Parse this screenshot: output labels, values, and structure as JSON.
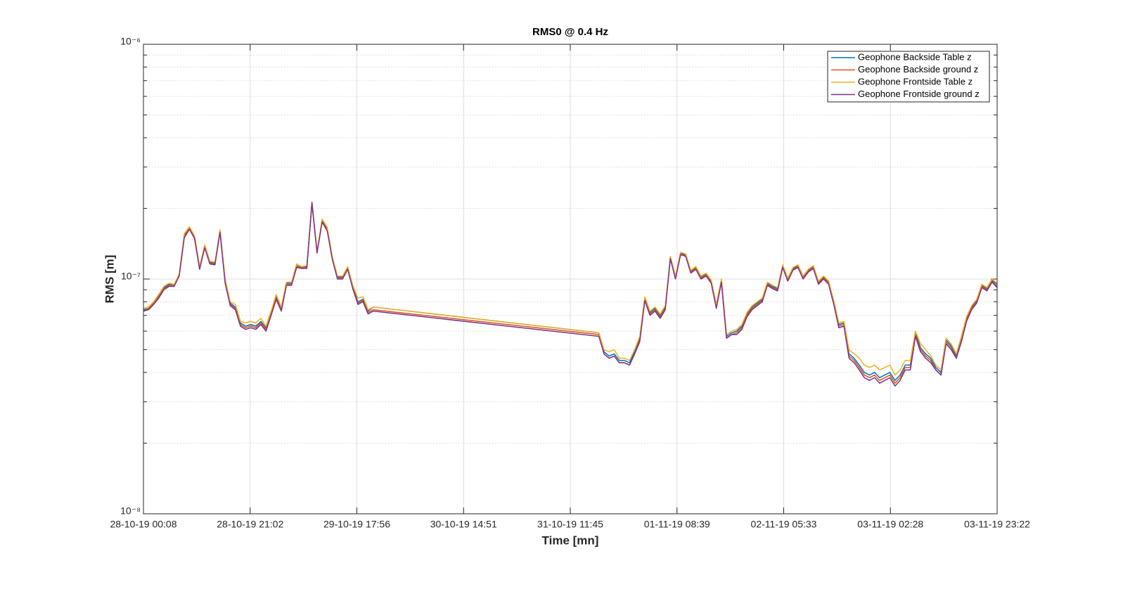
{
  "chart_data": {
    "type": "line",
    "title": "RMS0 @ 0.4 Hz",
    "xlabel": "Time [mn]",
    "ylabel": "RMS [m]",
    "yscale": "log",
    "grid": true,
    "legend": "northeast",
    "xlim": [
      0,
      167.2
    ],
    "xticks": [
      {
        "value": 0,
        "label": "28-10-19 00:08"
      },
      {
        "value": 20.9,
        "label": "28-10-19 21:02"
      },
      {
        "value": 41.8,
        "label": "29-10-19 17:56"
      },
      {
        "value": 62.7,
        "label": "30-10-19 14:51"
      },
      {
        "value": 83.6,
        "label": "31-10-19 11:45"
      },
      {
        "value": 104.5,
        "label": "01-11-19 08:39"
      },
      {
        "value": 125.4,
        "label": "02-11-19 05:33"
      },
      {
        "value": 146.3,
        "label": "03-11-19 02:28"
      },
      {
        "value": 167.2,
        "label": "03-11-19 23:22"
      }
    ],
    "ylim": [
      1e-08,
      1e-06
    ],
    "yticks": [
      {
        "value": 1e-08,
        "label": "10⁻⁸"
      },
      {
        "value": 1e-07,
        "label": "10⁻⁷"
      },
      {
        "value": 1e-06,
        "label": "10⁻⁶"
      }
    ],
    "yminorticks": [
      2e-08,
      3e-08,
      4e-08,
      5e-08,
      6e-08,
      7e-08,
      8e-08,
      9e-08,
      2e-07,
      3e-07,
      4e-07,
      5e-07,
      6e-07,
      7e-07,
      8e-07,
      9e-07
    ],
    "x": [
      0,
      1,
      2,
      3,
      4,
      5,
      6,
      7,
      8,
      9,
      10,
      11,
      12,
      13,
      14,
      15,
      16,
      17,
      18,
      19,
      20,
      21,
      22,
      23,
      24,
      25,
      26,
      27,
      28,
      29,
      30,
      31,
      32,
      33,
      34,
      35,
      36,
      37,
      38,
      39,
      40,
      41,
      42,
      43,
      44,
      45,
      89.2,
      90.2,
      91.2,
      92.2,
      93.2,
      94.2,
      95.2,
      96.2,
      97.2,
      98.2,
      99.2,
      100.2,
      101.2,
      102.2,
      103.2,
      104.2,
      105.2,
      106.2,
      107.2,
      108.2,
      109.2,
      110.2,
      111.2,
      112.2,
      113.2,
      114.2,
      115.2,
      116.2,
      117.2,
      118.2,
      119.2,
      120.2,
      121.2,
      122.2,
      123.2,
      124.2,
      125.2,
      126.2,
      127.2,
      128.2,
      129.2,
      130.2,
      131.2,
      132.2,
      133.2,
      134.2,
      135.2,
      136.2,
      137.2,
      138.2,
      139.2,
      140.2,
      141.2,
      142.2,
      143.2,
      144.2,
      145.2,
      146.2,
      147.2,
      148.2,
      149.2,
      150.2,
      151.2,
      152.2,
      153.2,
      154.2,
      155.2,
      156.2,
      157.2,
      158.2,
      159.2,
      160.2,
      161.2,
      162.2,
      163.2,
      164.2,
      165.2,
      166.2,
      167.2
    ],
    "series": [
      {
        "name": "Geophone Backside Table z",
        "color": "#0072BD",
        "values": [
          7.4e-08,
          7.5e-08,
          7.9e-08,
          8.5e-08,
          9.2e-08,
          9.5e-08,
          9.4e-08,
          1.04e-07,
          1.54e-07,
          1.66e-07,
          1.52e-07,
          1.12e-07,
          1.39e-07,
          1.18e-07,
          1.17e-07,
          1.61e-07,
          9.8e-08,
          7.9e-08,
          7.6e-08,
          6.5e-08,
          6.3e-08,
          6.4e-08,
          6.3e-08,
          6.6e-08,
          6.2e-08,
          7.2e-08,
          8.4e-08,
          7.5e-08,
          9.6e-08,
          9.6e-08,
          1.14e-07,
          1.12e-07,
          1.13e-07,
          2.13e-07,
          1.31e-07,
          1.78e-07,
          1.64e-07,
          1.23e-07,
          1.02e-07,
          1.02e-07,
          1.12e-07,
          9.3e-08,
          8e-08,
          8.2e-08,
          7.3e-08,
          7.6e-08,
          5.9e-08,
          4.9e-08,
          4.7e-08,
          4.8e-08,
          4.5e-08,
          4.5e-08,
          4.4e-08,
          4.9e-08,
          5.6e-08,
          8.3e-08,
          7.2e-08,
          7.5e-08,
          7e-08,
          7.6e-08,
          1.24e-07,
          1.02e-07,
          1.29e-07,
          1.27e-07,
          1.08e-07,
          1.12e-07,
          1.02e-07,
          1.05e-07,
          9.8e-08,
          7.7e-08,
          9.9e-08,
          5.7e-08,
          5.9e-08,
          6e-08,
          6.3e-08,
          7.1e-08,
          7.6e-08,
          7.9e-08,
          8.2e-08,
          9.6e-08,
          9.3e-08,
          9.1e-08,
          1.14e-07,
          1e-07,
          1.11e-07,
          1.14e-07,
          1.02e-07,
          1.09e-07,
          1.13e-07,
          9.7e-08,
          1.02e-07,
          9.7e-08,
          8e-08,
          6.4e-08,
          6.5e-08,
          4.8e-08,
          4.6e-08,
          4.3e-08,
          4e-08,
          3.9e-08,
          4e-08,
          3.8e-08,
          3.9e-08,
          4e-08,
          3.7e-08,
          3.9e-08,
          4.3e-08,
          4.3e-08,
          5.9e-08,
          5.1e-08,
          4.8e-08,
          4.6e-08,
          4.2e-08,
          4e-08,
          5.5e-08,
          5.2e-08,
          4.7e-08,
          5.6e-08,
          6.8e-08,
          7.6e-08,
          8.1e-08,
          9.4e-08,
          9.1e-08,
          9.9e-08,
          9.5e-08
        ]
      },
      {
        "name": "Geophone Backside ground z",
        "color": "#D95319",
        "values": [
          7.3e-08,
          7.5e-08,
          7.9e-08,
          8.4e-08,
          9.1e-08,
          9.4e-08,
          9.4e-08,
          1.04e-07,
          1.52e-07,
          1.65e-07,
          1.5e-07,
          1.11e-07,
          1.38e-07,
          1.17e-07,
          1.16e-07,
          1.6e-07,
          9.7e-08,
          7.8e-08,
          7.5e-08,
          6.4e-08,
          6.2e-08,
          6.3e-08,
          6.2e-08,
          6.5e-08,
          6.1e-08,
          7.1e-08,
          8.3e-08,
          7.4e-08,
          9.5e-08,
          9.5e-08,
          1.13e-07,
          1.12e-07,
          1.12e-07,
          2.12e-07,
          1.3e-07,
          1.77e-07,
          1.62e-07,
          1.22e-07,
          1.01e-07,
          1.01e-07,
          1.11e-07,
          9.2e-08,
          7.9e-08,
          8.1e-08,
          7.2e-08,
          7.4e-08,
          5.8e-08,
          4.8e-08,
          4.6e-08,
          4.7e-08,
          4.4e-08,
          4.4e-08,
          4.3e-08,
          4.8e-08,
          5.5e-08,
          8.2e-08,
          7.1e-08,
          7.4e-08,
          6.9e-08,
          7.5e-08,
          1.23e-07,
          1.01e-07,
          1.28e-07,
          1.26e-07,
          1.07e-07,
          1.11e-07,
          1.01e-07,
          1.04e-07,
          9.7e-08,
          7.6e-08,
          9.8e-08,
          5.6e-08,
          5.8e-08,
          5.9e-08,
          6.2e-08,
          7e-08,
          7.5e-08,
          7.8e-08,
          8.1e-08,
          9.5e-08,
          9.2e-08,
          9e-08,
          1.13e-07,
          9.9e-08,
          1.1e-07,
          1.13e-07,
          1.01e-07,
          1.08e-07,
          1.12e-07,
          9.6e-08,
          1.01e-07,
          9.6e-08,
          7.9e-08,
          6.3e-08,
          6.4e-08,
          4.7e-08,
          4.5e-08,
          4.2e-08,
          3.9e-08,
          3.8e-08,
          3.9e-08,
          3.7e-08,
          3.8e-08,
          3.9e-08,
          3.6e-08,
          3.8e-08,
          4.2e-08,
          4.2e-08,
          5.8e-08,
          5e-08,
          4.7e-08,
          4.5e-08,
          4.1e-08,
          3.9e-08,
          5.4e-08,
          5.1e-08,
          4.6e-08,
          5.5e-08,
          6.7e-08,
          7.5e-08,
          8e-08,
          9.3e-08,
          9e-08,
          9.8e-08,
          9.3e-08
        ]
      },
      {
        "name": "Geophone Frontside Table z",
        "color": "#EDB120",
        "values": [
          7.5e-08,
          7.6e-08,
          8e-08,
          8.6e-08,
          9.3e-08,
          9.6e-08,
          9.5e-08,
          1.05e-07,
          1.56e-07,
          1.67e-07,
          1.53e-07,
          1.13e-07,
          1.4e-07,
          1.19e-07,
          1.18e-07,
          1.62e-07,
          1e-07,
          8e-08,
          7.8e-08,
          6.6e-08,
          6.5e-08,
          6.6e-08,
          6.5e-08,
          6.8e-08,
          6.3e-08,
          7.3e-08,
          8.6e-08,
          7.6e-08,
          9.7e-08,
          9.7e-08,
          1.16e-07,
          1.13e-07,
          1.14e-07,
          2.11e-07,
          1.32e-07,
          1.8e-07,
          1.66e-07,
          1.24e-07,
          1.03e-07,
          1.03e-07,
          1.13e-07,
          9.4e-08,
          8.3e-08,
          8.4e-08,
          7.4e-08,
          7.6e-08,
          5.9e-08,
          5e-08,
          4.9e-08,
          5e-08,
          4.6e-08,
          4.6e-08,
          4.5e-08,
          5e-08,
          5.7e-08,
          8.4e-08,
          7.3e-08,
          7.6e-08,
          7.1e-08,
          7.7e-08,
          1.25e-07,
          1.03e-07,
          1.3e-07,
          1.28e-07,
          1.09e-07,
          1.13e-07,
          1.03e-07,
          1.06e-07,
          9.9e-08,
          7.8e-08,
          1e-07,
          5.8e-08,
          6e-08,
          6.1e-08,
          6.4e-08,
          7.2e-08,
          7.7e-08,
          8e-08,
          8.3e-08,
          9.7e-08,
          9.4e-08,
          9.2e-08,
          1.15e-07,
          1.01e-07,
          1.12e-07,
          1.15e-07,
          1.03e-07,
          1.1e-07,
          1.14e-07,
          9.8e-08,
          1.03e-07,
          9.8e-08,
          8.1e-08,
          6.5e-08,
          6.6e-08,
          5e-08,
          4.8e-08,
          4.6e-08,
          4.3e-08,
          4.2e-08,
          4.3e-08,
          4.1e-08,
          4.2e-08,
          4.3e-08,
          3.9e-08,
          4.1e-08,
          4.5e-08,
          4.5e-08,
          6e-08,
          5.3e-08,
          5e-08,
          4.7e-08,
          4.3e-08,
          4.1e-08,
          5.6e-08,
          5.3e-08,
          4.8e-08,
          5.7e-08,
          6.9e-08,
          7.7e-08,
          8.2e-08,
          9.5e-08,
          9.2e-08,
          1e-07,
          9.6e-08
        ]
      },
      {
        "name": "Geophone Frontside ground z",
        "color": "#7E2F8E",
        "values": [
          7.3e-08,
          7.4e-08,
          7.8e-08,
          8.3e-08,
          9e-08,
          9.3e-08,
          9.3e-08,
          1.03e-07,
          1.5e-07,
          1.63e-07,
          1.49e-07,
          1.1e-07,
          1.36e-07,
          1.16e-07,
          1.15e-07,
          1.58e-07,
          9.6e-08,
          7.7e-08,
          7.4e-08,
          6.3e-08,
          6.1e-08,
          6.2e-08,
          6.1e-08,
          6.4e-08,
          6e-08,
          7e-08,
          8.2e-08,
          7.3e-08,
          9.4e-08,
          9.4e-08,
          1.12e-07,
          1.11e-07,
          1.11e-07,
          2.1e-07,
          1.29e-07,
          1.75e-07,
          1.6e-07,
          1.21e-07,
          1e-07,
          1e-07,
          1.1e-07,
          9.1e-08,
          7.8e-08,
          8e-08,
          7.1e-08,
          7.3e-08,
          5.7e-08,
          4.8e-08,
          4.6e-08,
          4.7e-08,
          4.4e-08,
          4.4e-08,
          4.3e-08,
          4.8e-08,
          5.4e-08,
          8.1e-08,
          7e-08,
          7.3e-08,
          6.8e-08,
          7.4e-08,
          1.22e-07,
          1e-07,
          1.27e-07,
          1.25e-07,
          1.06e-07,
          1.1e-07,
          1e-07,
          1.03e-07,
          9.6e-08,
          7.5e-08,
          9.7e-08,
          5.6e-08,
          5.8e-08,
          5.8e-08,
          6.1e-08,
          6.9e-08,
          7.4e-08,
          7.7e-08,
          8e-08,
          9.4e-08,
          9.1e-08,
          8.9e-08,
          1.12e-07,
          9.8e-08,
          1.09e-07,
          1.12e-07,
          1e-07,
          1.07e-07,
          1.11e-07,
          9.5e-08,
          1e-07,
          9.5e-08,
          7.8e-08,
          6.2e-08,
          6.3e-08,
          4.6e-08,
          4.4e-08,
          4.1e-08,
          3.8e-08,
          3.7e-08,
          3.8e-08,
          3.6e-08,
          3.7e-08,
          3.8e-08,
          3.5e-08,
          3.7e-08,
          4.1e-08,
          4.1e-08,
          5.7e-08,
          4.9e-08,
          4.6e-08,
          4.4e-08,
          4.1e-08,
          3.9e-08,
          5.3e-08,
          5e-08,
          4.6e-08,
          5.4e-08,
          6.6e-08,
          7.4e-08,
          7.9e-08,
          9.2e-08,
          8.9e-08,
          9.7e-08,
          9.2e-08
        ]
      }
    ]
  }
}
